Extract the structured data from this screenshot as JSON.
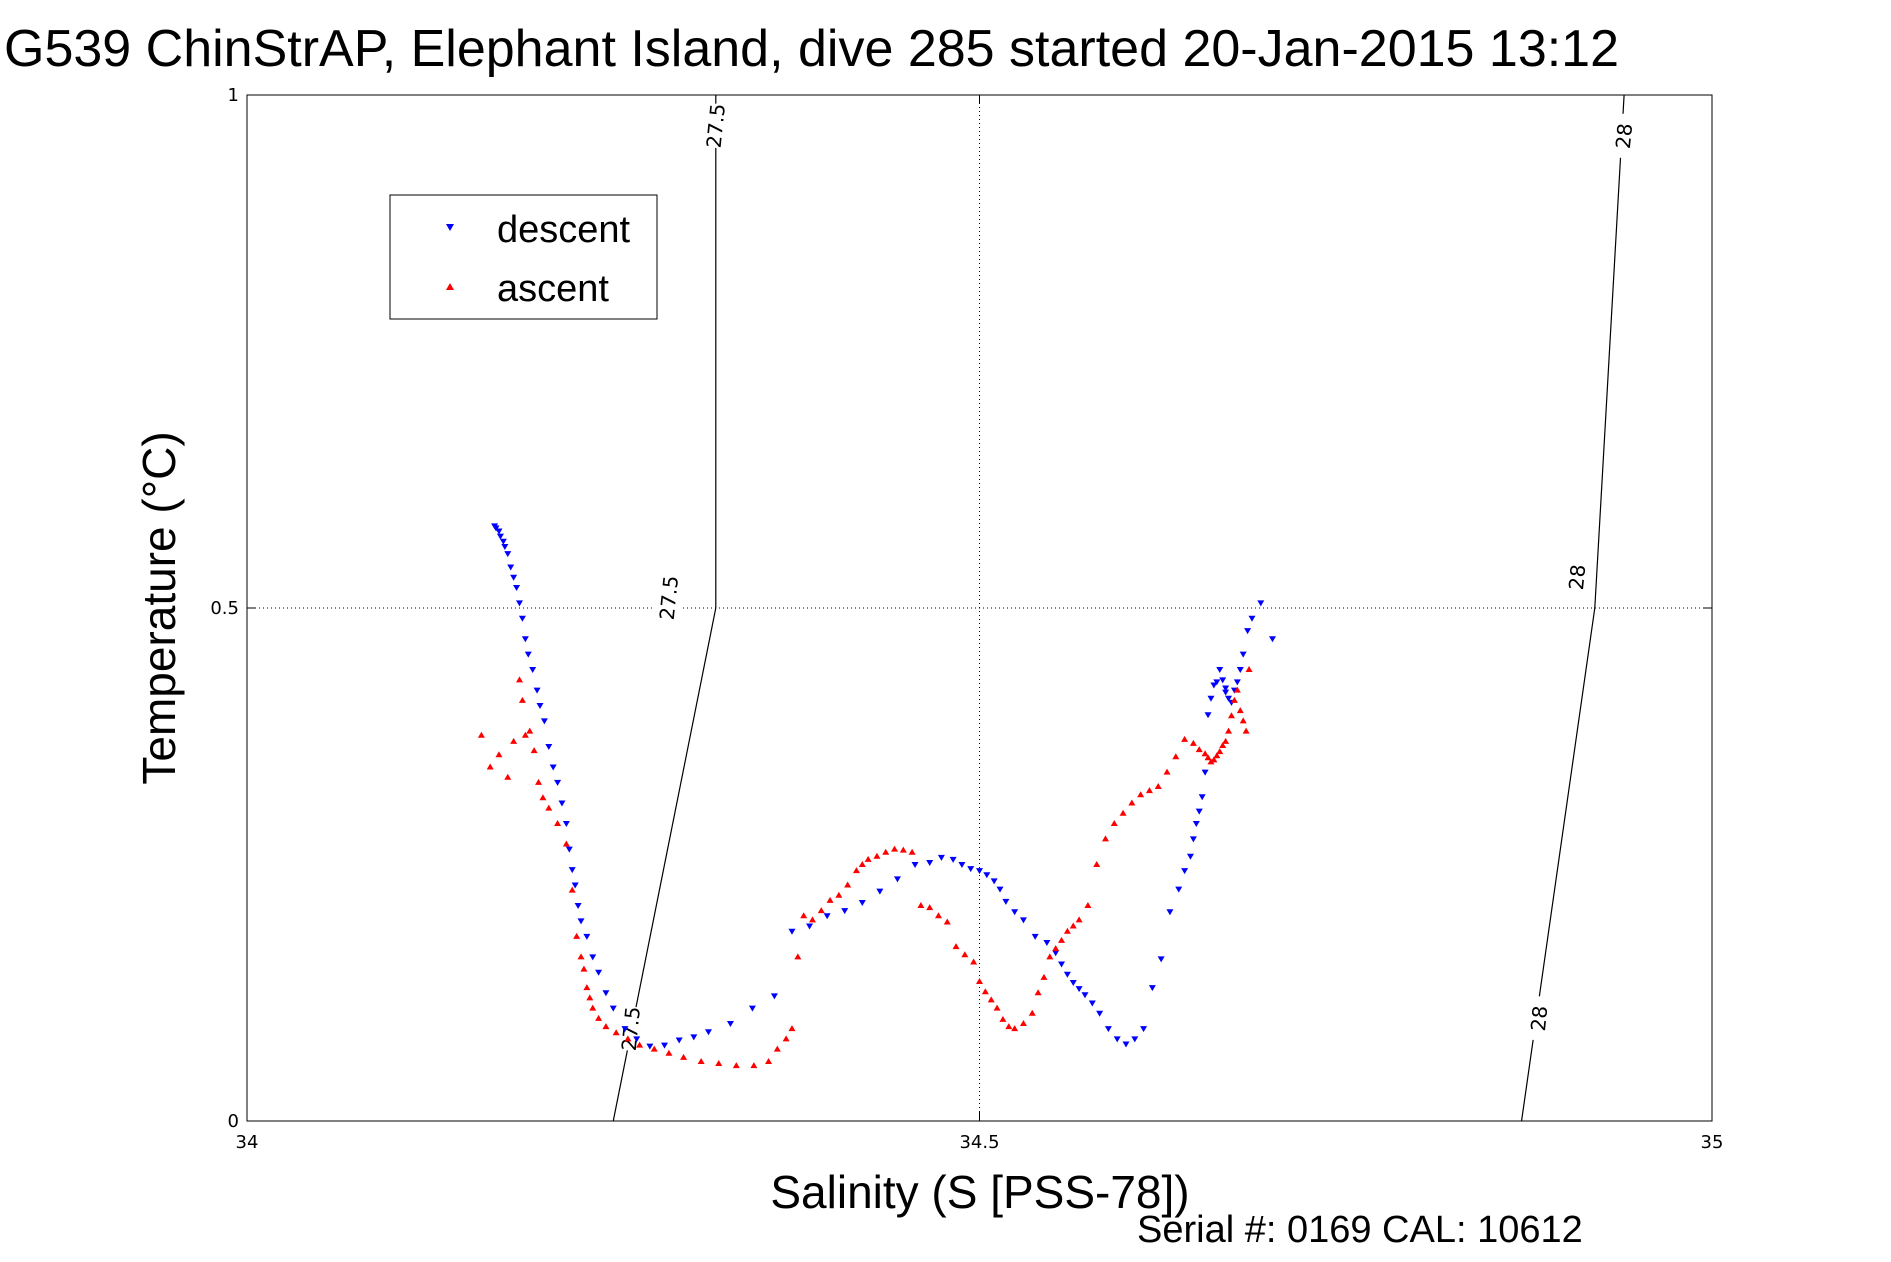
{
  "chart_data": {
    "type": "scatter",
    "title": "G539 ChinStrAP, Elephant Island, dive 285 started 20-Jan-2015 13:12",
    "xlabel": "Salinity (S [PSS-78])",
    "ylabel": "Temperature (°C)",
    "xlim": [
      34,
      35
    ],
    "ylim": [
      0,
      1
    ],
    "xticks": [
      34,
      34.5,
      35
    ],
    "yticks": [
      0,
      0.5,
      1
    ],
    "xtick_labels": [
      "34",
      "34.5",
      "35"
    ],
    "ytick_labels": [
      "0",
      "0.5",
      "1"
    ],
    "grid": true,
    "legend_position": "top-left",
    "footer": "Serial #: 0169 CAL: 10612",
    "density_contours": [
      {
        "label": "27.5",
        "points": [
          [
            34.25,
            0.0
          ],
          [
            34.32,
            0.5
          ],
          [
            34.32,
            1.0
          ]
        ],
        "label_at": [
          [
            34.262,
            0.09
          ],
          [
            34.288,
            0.51
          ],
          [
            34.32,
            0.97
          ]
        ]
      },
      {
        "label": "28",
        "points": [
          [
            34.87,
            0.0
          ],
          [
            34.92,
            0.5
          ],
          [
            34.94,
            1.0
          ]
        ],
        "label_at": [
          [
            34.882,
            0.1
          ],
          [
            34.908,
            0.53
          ],
          [
            34.94,
            0.96
          ]
        ]
      }
    ],
    "series": [
      {
        "name": "descent",
        "color": "#0000ff",
        "marker": "triangle-down",
        "x": [
          34.169,
          34.17,
          34.172,
          34.173,
          34.175,
          34.176,
          34.178,
          34.18,
          34.182,
          34.184,
          34.186,
          34.188,
          34.19,
          34.192,
          34.195,
          34.198,
          34.2,
          34.203,
          34.206,
          34.209,
          34.212,
          34.215,
          34.218,
          34.22,
          34.222,
          34.224,
          34.226,
          34.228,
          34.232,
          34.236,
          34.24,
          34.245,
          34.25,
          34.258,
          34.266,
          34.275,
          34.285,
          34.295,
          34.305,
          34.315,
          34.33,
          34.345,
          34.36,
          34.372,
          34.384,
          34.396,
          34.408,
          34.42,
          34.432,
          34.444,
          34.456,
          34.466,
          34.474,
          34.482,
          34.488,
          34.494,
          34.5,
          34.505,
          34.51,
          34.514,
          34.518,
          34.524,
          34.53,
          34.538,
          34.546,
          34.552,
          34.556,
          34.56,
          34.564,
          34.568,
          34.572,
          34.577,
          34.582,
          34.588,
          34.594,
          34.6,
          34.606,
          34.612,
          34.618,
          34.624,
          34.63,
          34.636,
          34.64,
          34.644,
          34.646,
          34.648,
          34.65,
          34.652,
          34.654,
          34.656,
          34.658,
          34.66,
          34.662,
          34.664,
          34.666,
          34.668,
          34.668,
          34.67,
          34.672,
          34.674,
          34.676,
          34.678,
          34.68,
          34.683,
          34.686,
          34.692,
          34.7
        ],
        "y": [
          0.58,
          0.578,
          0.575,
          0.57,
          0.565,
          0.56,
          0.553,
          0.54,
          0.53,
          0.52,
          0.505,
          0.49,
          0.47,
          0.455,
          0.44,
          0.42,
          0.405,
          0.39,
          0.365,
          0.345,
          0.33,
          0.31,
          0.29,
          0.265,
          0.245,
          0.23,
          0.21,
          0.195,
          0.18,
          0.16,
          0.145,
          0.125,
          0.11,
          0.09,
          0.08,
          0.073,
          0.074,
          0.079,
          0.082,
          0.087,
          0.095,
          0.11,
          0.122,
          0.185,
          0.19,
          0.2,
          0.205,
          0.213,
          0.224,
          0.236,
          0.25,
          0.252,
          0.257,
          0.255,
          0.25,
          0.246,
          0.244,
          0.24,
          0.234,
          0.226,
          0.214,
          0.204,
          0.196,
          0.18,
          0.174,
          0.164,
          0.153,
          0.143,
          0.135,
          0.129,
          0.123,
          0.115,
          0.105,
          0.09,
          0.08,
          0.075,
          0.08,
          0.09,
          0.13,
          0.158,
          0.204,
          0.226,
          0.244,
          0.258,
          0.275,
          0.29,
          0.302,
          0.316,
          0.34,
          0.396,
          0.412,
          0.425,
          0.428,
          0.44,
          0.43,
          0.418,
          0.422,
          0.412,
          0.408,
          0.42,
          0.428,
          0.44,
          0.455,
          0.478,
          0.49,
          0.505,
          0.47
        ]
      },
      {
        "name": "ascent",
        "color": "#ff0000",
        "marker": "triangle-up",
        "x": [
          34.16,
          34.166,
          34.172,
          34.178,
          34.182,
          34.186,
          34.188,
          34.19,
          34.193,
          34.196,
          34.199,
          34.202,
          34.206,
          34.212,
          34.218,
          34.222,
          34.225,
          34.228,
          34.23,
          34.232,
          34.234,
          34.236,
          34.24,
          34.245,
          34.252,
          34.26,
          34.268,
          34.278,
          34.288,
          34.298,
          34.31,
          34.322,
          34.334,
          34.346,
          34.356,
          34.362,
          34.368,
          34.372,
          34.376,
          34.38,
          34.386,
          34.392,
          34.398,
          34.404,
          34.41,
          34.416,
          34.42,
          34.424,
          34.43,
          34.436,
          34.442,
          34.448,
          34.454,
          34.46,
          34.466,
          34.472,
          34.478,
          34.484,
          34.49,
          34.496,
          34.5,
          34.504,
          34.508,
          34.512,
          34.516,
          34.52,
          34.524,
          34.53,
          34.536,
          34.54,
          34.544,
          34.548,
          34.552,
          34.556,
          34.56,
          34.564,
          34.568,
          34.574,
          34.58,
          34.586,
          34.592,
          34.598,
          34.604,
          34.61,
          34.616,
          34.622,
          34.628,
          34.634,
          34.64,
          34.646,
          34.65,
          34.654,
          34.656,
          34.658,
          34.66,
          34.662,
          34.664,
          34.666,
          34.668,
          34.67,
          34.672,
          34.674,
          34.676,
          34.678,
          34.68,
          34.682,
          34.684
        ],
        "y": [
          0.376,
          0.345,
          0.357,
          0.335,
          0.37,
          0.43,
          0.41,
          0.376,
          0.38,
          0.361,
          0.33,
          0.315,
          0.305,
          0.29,
          0.27,
          0.225,
          0.18,
          0.16,
          0.148,
          0.13,
          0.12,
          0.11,
          0.1,
          0.092,
          0.086,
          0.08,
          0.074,
          0.07,
          0.066,
          0.062,
          0.058,
          0.056,
          0.054,
          0.054,
          0.058,
          0.07,
          0.08,
          0.09,
          0.16,
          0.2,
          0.196,
          0.205,
          0.215,
          0.22,
          0.23,
          0.244,
          0.25,
          0.255,
          0.258,
          0.262,
          0.265,
          0.264,
          0.262,
          0.21,
          0.208,
          0.2,
          0.194,
          0.17,
          0.162,
          0.155,
          0.136,
          0.126,
          0.118,
          0.11,
          0.099,
          0.092,
          0.09,
          0.095,
          0.105,
          0.125,
          0.14,
          0.16,
          0.168,
          0.176,
          0.185,
          0.19,
          0.196,
          0.21,
          0.25,
          0.275,
          0.29,
          0.3,
          0.31,
          0.318,
          0.322,
          0.326,
          0.34,
          0.355,
          0.372,
          0.368,
          0.362,
          0.358,
          0.354,
          0.35,
          0.352,
          0.356,
          0.36,
          0.366,
          0.37,
          0.38,
          0.395,
          0.41,
          0.42,
          0.4,
          0.39,
          0.38,
          0.44
        ]
      }
    ]
  }
}
